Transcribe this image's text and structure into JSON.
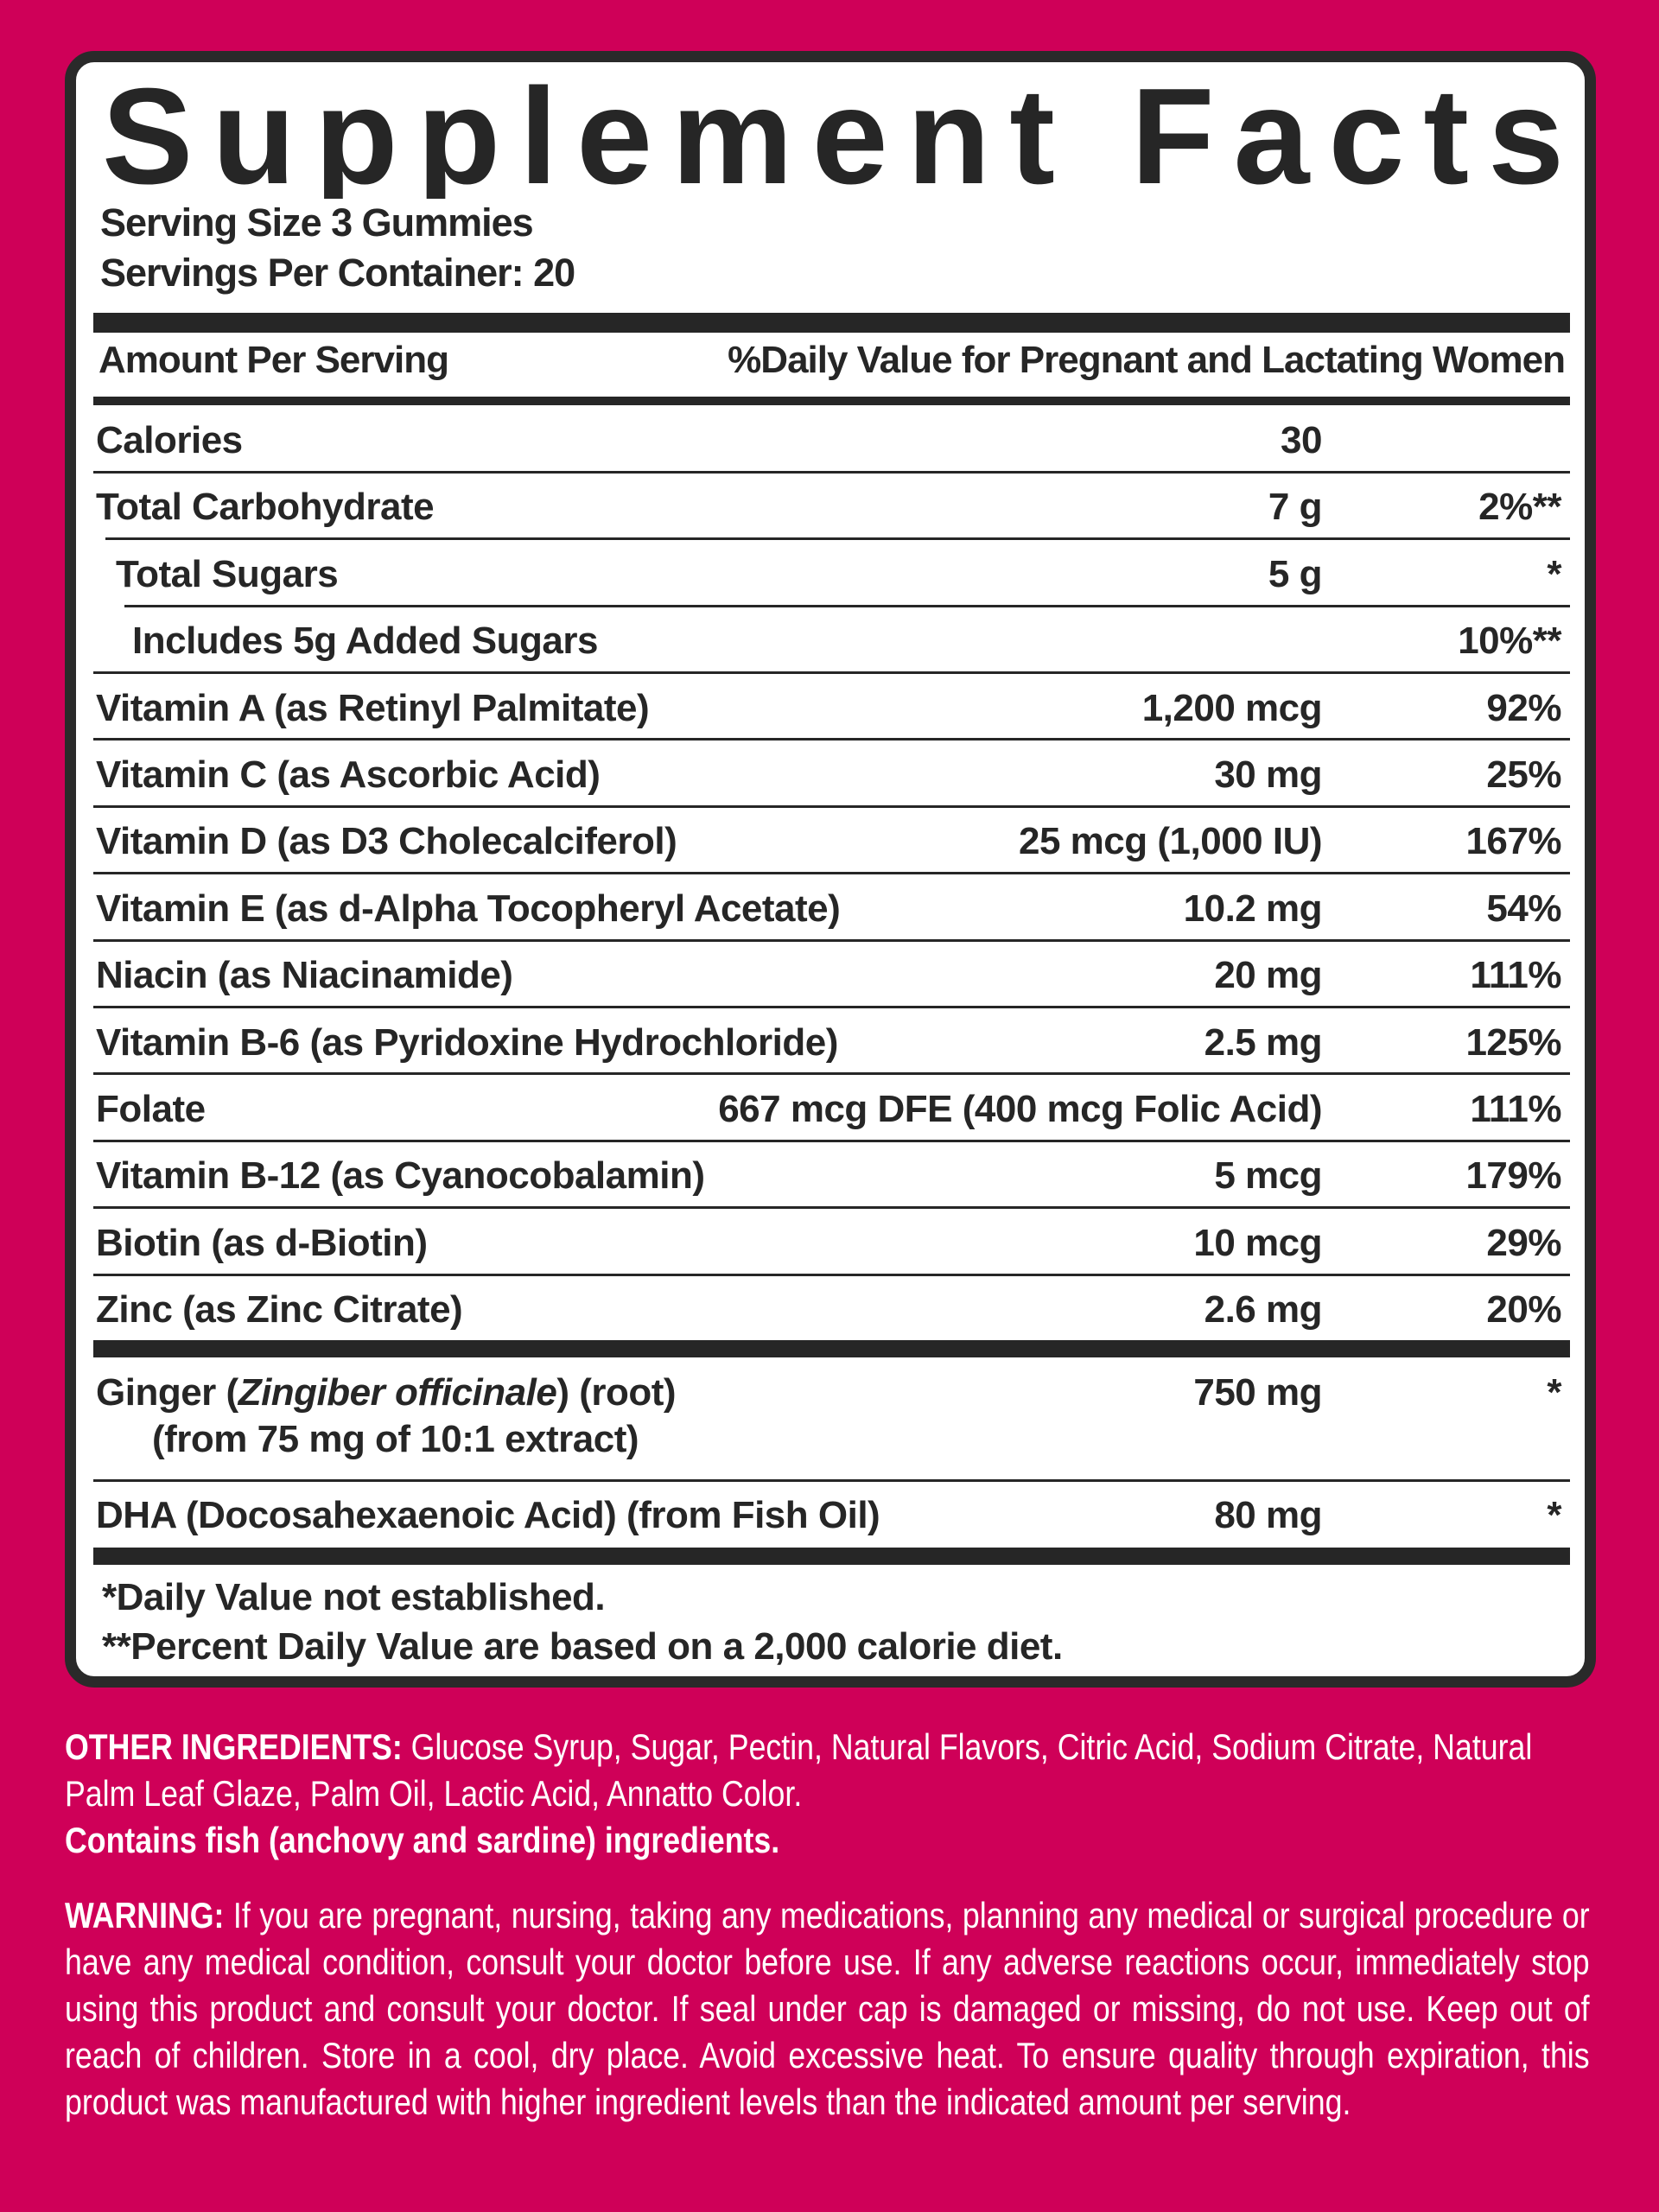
{
  "colors": {
    "background": "#cf0058",
    "panel": "#ffffff",
    "ink": "#262626"
  },
  "title": "Supplement Facts",
  "serving_size": "Serving Size 3 Gummies",
  "servings_per_container": "Servings Per Container: 20",
  "header": {
    "left": "Amount Per Serving",
    "right": "%Daily Value for Pregnant and Lactating Women"
  },
  "rows": [
    {
      "name": "Calories",
      "amount": "30",
      "dv": ""
    },
    {
      "name": "Total Carbohydrate",
      "amount": "7 g",
      "dv": "2%**"
    },
    {
      "name": "Total Sugars",
      "amount": "5 g",
      "dv": "*"
    },
    {
      "name": "Includes 5g Added Sugars",
      "amount": "",
      "dv": "10%**"
    },
    {
      "name": "Vitamin A (as Retinyl Palmitate)",
      "amount": "1,200 mcg",
      "dv": "92%"
    },
    {
      "name": "Vitamin C (as Ascorbic Acid)",
      "amount": "30 mg",
      "dv": "25%"
    },
    {
      "name": "Vitamin D (as D3 Cholecalciferol)",
      "amount": "25 mcg (1,000 IU)",
      "dv": "167%"
    },
    {
      "name": "Vitamin E (as d-Alpha Tocopheryl Acetate)",
      "amount": "10.2 mg",
      "dv": "54%"
    },
    {
      "name": "Niacin (as Niacinamide)",
      "amount": "20 mg",
      "dv": "111%"
    },
    {
      "name": "Vitamin B-6 (as Pyridoxine Hydrochloride)",
      "amount": "2.5 mg",
      "dv": "125%"
    },
    {
      "name": "Folate",
      "amount": "667 mcg DFE (400 mcg Folic Acid)",
      "dv": "111%"
    },
    {
      "name": "Vitamin B-12 (as Cyanocobalamin)",
      "amount": "5 mcg",
      "dv": "179%"
    },
    {
      "name": "Biotin (as d-Biotin)",
      "amount": "10 mcg",
      "dv": "29%"
    },
    {
      "name": "Zinc (as Zinc Citrate)",
      "amount": "2.6 mg",
      "dv": "20%"
    }
  ],
  "ginger": {
    "pre": "Ginger (",
    "italic": "Zingiber officinale",
    "post": ") (root)",
    "sub": "(from 75 mg of 10:1 extract)",
    "amount": "750 mg",
    "dv": "*"
  },
  "dha": {
    "name": "DHA (Docosahexaenoic Acid) (from Fish Oil)",
    "amount": "80 mg",
    "dv": "*"
  },
  "footnotes": [
    "*Daily Value not established.",
    "**Percent Daily Value are based on a 2,000 calorie diet."
  ],
  "other_ingredients": {
    "label": "OTHER INGREDIENTS:",
    "text": " Glucose Syrup, Sugar, Pectin, Natural Flavors, Citric Acid, Sodium Citrate, Natural Palm Leaf Glaze, Palm Oil, Lactic Acid, Annatto Color.",
    "allergen": "Contains fish (anchovy and sardine) ingredients."
  },
  "warning": {
    "label": "WARNING:",
    "text": " If you are pregnant, nursing, taking any medications, planning any medical or surgical procedure or have any medical condition, consult your doctor before use. If any adverse reactions occur, immediately stop using this product and consult your doctor. If seal under cap is damaged or missing, do not use. Keep out of reach of children. Store in a cool, dry place. Avoid excessive heat. To ensure quality through expiration, this product was manufactured with higher ingredient levels than the indicated amount per serving."
  }
}
